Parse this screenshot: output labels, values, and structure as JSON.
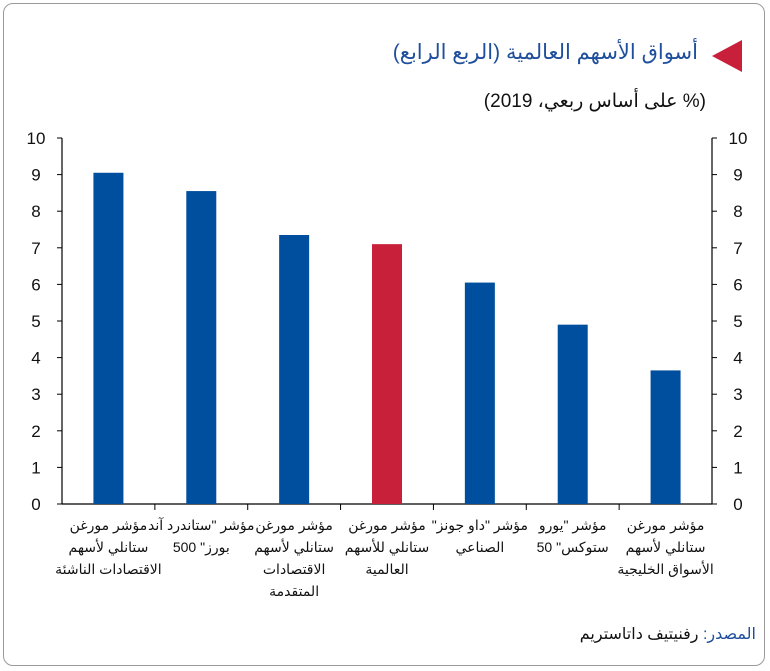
{
  "header": {
    "title": "أسواق الأسهم العالمية (الربع الرابع)",
    "subtitle": "(% على أساس ربعي، 2019)"
  },
  "footer": {
    "source_label": "المصدر:",
    "source_value": "رفنيتيف داتاستريم"
  },
  "colors": {
    "primary_bar": "#004f9e",
    "highlight_bar": "#c8203a",
    "title": "#1f4e9c",
    "marker": "#c8203a"
  },
  "chart_data": {
    "type": "bar",
    "title": "أسواق الأسهم العالمية (الربع الرابع)",
    "subtitle": "(% على أساس ربعي، 2019)",
    "xlabel": "",
    "ylabel": "",
    "ylim": [
      0,
      10
    ],
    "yticks": [
      "0",
      "1",
      "2",
      "3",
      "4",
      "5",
      "6",
      "7",
      "8",
      "9",
      "10"
    ],
    "grid": false,
    "legend": "none",
    "categories": [
      [
        "مؤشر مورغن",
        "ستانلي لأسهم",
        "الاقتصادات الناشئة"
      ],
      [
        "مؤشر \"ستاندرد آند",
        "بورز\" 500"
      ],
      [
        "مؤشر مورغن",
        "ستانلي لأسهم",
        "الاقتصادات",
        "المتقدمة"
      ],
      [
        "مؤشر مورغن",
        "ستانلي للأسهم",
        "العالمية"
      ],
      [
        "مؤشر \"داو جونز\"",
        "الصناعي"
      ],
      [
        "مؤشر \"يورو",
        "ستوكس\" 50"
      ],
      [
        "مؤشر مورغن",
        "ستانلي لأسهم",
        "الأسواق الخليجية"
      ]
    ],
    "values": [
      9.05,
      8.55,
      7.35,
      7.1,
      6.05,
      4.9,
      3.65
    ],
    "highlight_index": 3
  }
}
